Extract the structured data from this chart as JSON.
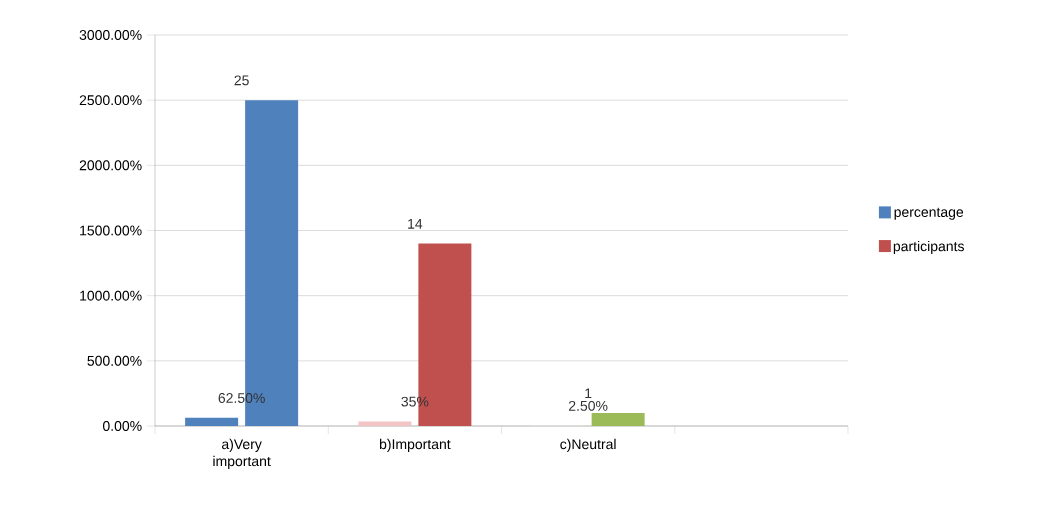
{
  "chart_data": {
    "type": "bar",
    "categories": [
      "a)Very important",
      "b)Important",
      "c)Neutral",
      null
    ],
    "series": [
      {
        "name": "percentage",
        "color": "#4f81bd",
        "colors": [
          "#4f81bd",
          "#f2c4c4",
          "#ebf1de",
          null
        ],
        "values": [
          0.625,
          0.35,
          0.025,
          null
        ],
        "value_labels": [
          "62.50%",
          "35%",
          "2.50%",
          null
        ]
      },
      {
        "name": "participants",
        "color": "#c0504d",
        "colors": [
          "#4f81bd",
          "#c0504d",
          "#9bbb59",
          null
        ],
        "values": [
          25,
          14,
          1,
          null
        ],
        "value_labels": [
          "25",
          "14",
          "1",
          null
        ]
      }
    ],
    "ylim": [
      0,
      30
    ],
    "yticks": [
      {
        "value": 0,
        "label": "0.00%"
      },
      {
        "value": 5,
        "label": "500.00%"
      },
      {
        "value": 10,
        "label": "1000.00%"
      },
      {
        "value": 15,
        "label": "1500.00%"
      },
      {
        "value": 20,
        "label": "2000.00%"
      },
      {
        "value": 25,
        "label": "2500.00%"
      },
      {
        "value": 30,
        "label": "3000.00%"
      }
    ],
    "grid": "y",
    "legend": "right"
  }
}
